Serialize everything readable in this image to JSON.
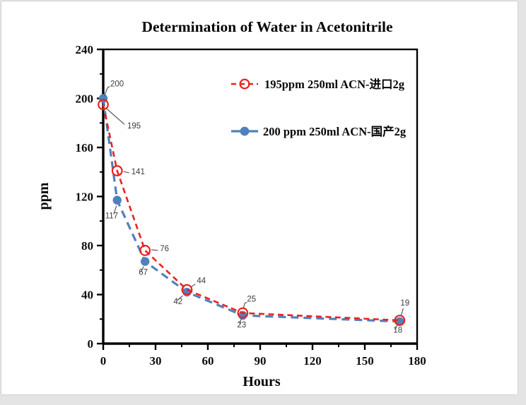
{
  "window": {
    "background_color": "#e4e4e4",
    "card_background": "#ffffff",
    "card_border_color": "#d2d2d2"
  },
  "chart_data": {
    "type": "line",
    "title": "Determination of Water in Acetonitrile",
    "xlabel": "Hours",
    "ylabel": "ppm",
    "xlim": [
      0,
      180
    ],
    "ylim": [
      0,
      240
    ],
    "x_tick_labels": [
      0,
      30,
      60,
      90,
      120,
      150,
      180
    ],
    "y_tick_labels": [
      0,
      40,
      80,
      120,
      160,
      200,
      240
    ],
    "x_minor_tick_step": 15,
    "y_minor_tick_step": 20,
    "grid": false,
    "legend_position": "inside-upper-right",
    "x": [
      0,
      8,
      24,
      48,
      80,
      170
    ],
    "series": [
      {
        "name": "195ppm  250ml ACN-进口2g",
        "color": "#e8231f",
        "marker": "open-circle",
        "line_style": "dashed",
        "values": [
          195,
          141,
          76,
          44,
          25,
          19
        ]
      },
      {
        "name": "200 ppm 250ml ACN-国产2g",
        "color": "#4f81bd",
        "marker": "filled-circle",
        "line_style": "dashed",
        "values": [
          200,
          117,
          67,
          42,
          23,
          18
        ]
      }
    ]
  }
}
